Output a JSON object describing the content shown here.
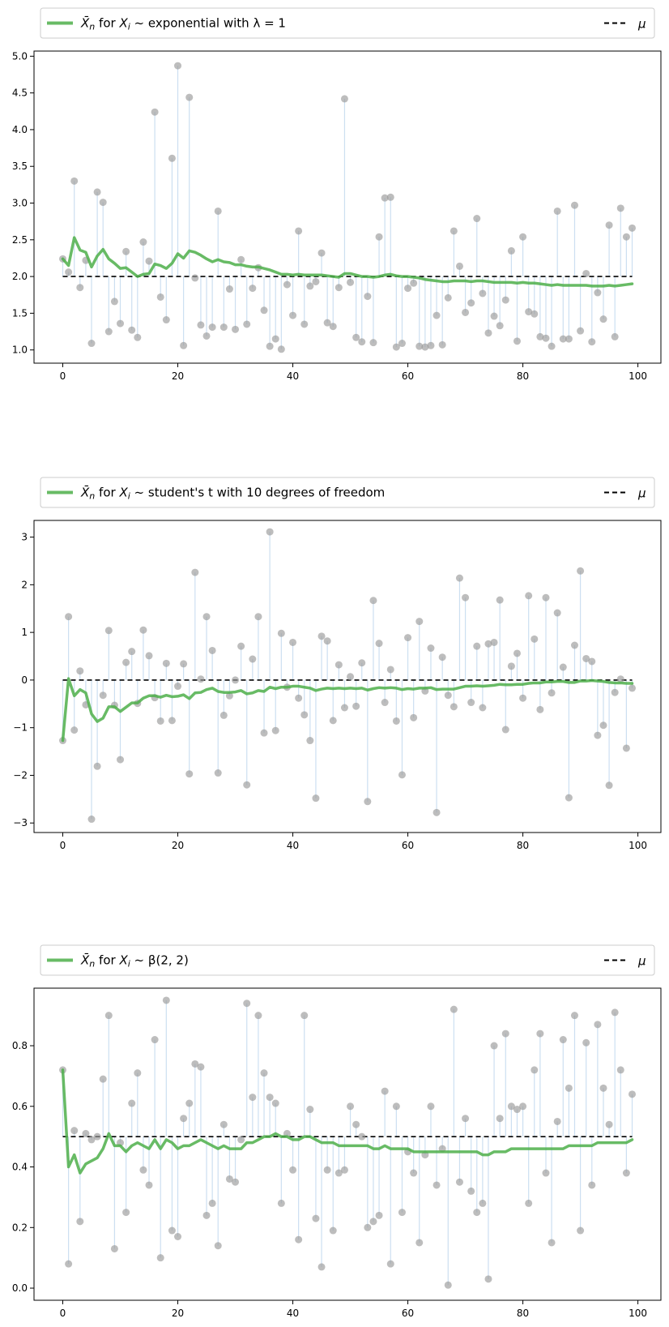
{
  "figure": {
    "legend_mu_label": "μ"
  },
  "chart_data": [
    {
      "type": "line",
      "title": "",
      "xlabel": "",
      "ylabel": "",
      "distribution_label": "exponential with λ = 1",
      "legend": {
        "placement": "above-plot",
        "entries": [
          "X̄n for Xi ~ exponential with λ = 1",
          "μ"
        ]
      },
      "grid": false,
      "xlim": [
        -5,
        104
      ],
      "ylim": [
        0.82,
        5.07
      ],
      "xticks": [
        0,
        20,
        40,
        60,
        80,
        100
      ],
      "xtick_labels": [
        "0",
        "20",
        "40",
        "60",
        "80",
        "100"
      ],
      "yticks": [
        1.0,
        1.5,
        2.0,
        2.5,
        3.0,
        3.5,
        4.0,
        4.5,
        5.0
      ],
      "ytick_labels": [
        "1.0",
        "1.5",
        "2.0",
        "2.5",
        "3.0",
        "3.5",
        "4.0",
        "4.5",
        "5.0"
      ],
      "mu": 2.0,
      "x": [
        0,
        1,
        2,
        3,
        4,
        5,
        6,
        7,
        8,
        9,
        10,
        11,
        12,
        13,
        14,
        15,
        16,
        17,
        18,
        19,
        20,
        21,
        22,
        23,
        24,
        25,
        26,
        27,
        28,
        29,
        30,
        31,
        32,
        33,
        34,
        35,
        36,
        37,
        38,
        39,
        40,
        41,
        42,
        43,
        44,
        45,
        46,
        47,
        48,
        49,
        50,
        51,
        52,
        53,
        54,
        55,
        56,
        57,
        58,
        59,
        60,
        61,
        62,
        63,
        64,
        65,
        66,
        67,
        68,
        69,
        70,
        71,
        72,
        73,
        74,
        75,
        76,
        77,
        78,
        79,
        80,
        81,
        82,
        83,
        84,
        85,
        86,
        87,
        88,
        89,
        90,
        91,
        92,
        93,
        94,
        95,
        96,
        97,
        98,
        99
      ],
      "samples": [
        2.24,
        2.06,
        3.3,
        1.85,
        2.22,
        1.09,
        3.15,
        3.01,
        1.25,
        1.66,
        1.36,
        2.34,
        1.27,
        1.17,
        2.47,
        2.21,
        4.24,
        1.72,
        1.41,
        3.61,
        4.87,
        1.06,
        4.44,
        1.98,
        1.34,
        1.19,
        1.31,
        2.89,
        1.31,
        1.83,
        1.28,
        2.23,
        1.35,
        1.84,
        2.12,
        1.54,
        1.05,
        1.15,
        1.01,
        1.89,
        1.47,
        2.62,
        1.35,
        1.87,
        1.93,
        2.32,
        1.37,
        1.32,
        1.85,
        4.42,
        1.92,
        1.17,
        1.11,
        1.73,
        1.1,
        2.54,
        3.07,
        3.08,
        1.04,
        1.09,
        1.84,
        1.91,
        1.05,
        1.04,
        1.06,
        1.47,
        1.07,
        1.71,
        2.62,
        2.14,
        1.51,
        1.64,
        2.79,
        1.77,
        1.23,
        1.46,
        1.33,
        1.68,
        2.35,
        1.12,
        2.54,
        1.52,
        1.49,
        1.18,
        1.16,
        1.05,
        2.89,
        1.15,
        1.15,
        2.97,
        1.26,
        2.04,
        1.11,
        1.78,
        1.42,
        2.7,
        1.18,
        2.93,
        2.54,
        2.66
      ],
      "running_mean": [
        2.24,
        2.15,
        2.53,
        2.36,
        2.33,
        2.13,
        2.28,
        2.37,
        2.24,
        2.18,
        2.11,
        2.12,
        2.06,
        2.0,
        2.03,
        2.04,
        2.17,
        2.15,
        2.11,
        2.18,
        2.31,
        2.25,
        2.35,
        2.33,
        2.29,
        2.24,
        2.2,
        2.23,
        2.2,
        2.19,
        2.16,
        2.16,
        2.14,
        2.13,
        2.13,
        2.11,
        2.09,
        2.06,
        2.03,
        2.03,
        2.02,
        2.03,
        2.02,
        2.02,
        2.02,
        2.02,
        2.01,
        2.0,
        1.99,
        2.04,
        2.04,
        2.02,
        2.0,
        2.0,
        1.99,
        2.0,
        2.02,
        2.03,
        2.01,
        2.0,
        2.0,
        1.99,
        1.98,
        1.96,
        1.95,
        1.94,
        1.93,
        1.93,
        1.94,
        1.94,
        1.94,
        1.93,
        1.94,
        1.94,
        1.93,
        1.92,
        1.92,
        1.92,
        1.92,
        1.91,
        1.92,
        1.91,
        1.91,
        1.9,
        1.89,
        1.88,
        1.89,
        1.88,
        1.88,
        1.88,
        1.88,
        1.88,
        1.87,
        1.87,
        1.87,
        1.88,
        1.87,
        1.88,
        1.89,
        1.9
      ],
      "colors": {
        "samples": "#999999",
        "stems": "#c6dbef",
        "running_mean": "#4daf4a",
        "mu": "#000000"
      }
    },
    {
      "type": "line",
      "title": "",
      "xlabel": "",
      "ylabel": "",
      "distribution_label": "student's t with 10 degrees of freedom",
      "legend": {
        "placement": "above-plot",
        "entries": [
          "X̄n for Xi ~ student's t with 10 degrees of freedom",
          "μ"
        ]
      },
      "grid": false,
      "xlim": [
        -5,
        104
      ],
      "ylim": [
        -3.2,
        3.35
      ],
      "xticks": [
        0,
        20,
        40,
        60,
        80,
        100
      ],
      "xtick_labels": [
        "0",
        "20",
        "40",
        "60",
        "80",
        "100"
      ],
      "yticks": [
        -3,
        -2,
        -1,
        0,
        1,
        2,
        3
      ],
      "ytick_labels": [
        "−3",
        "−2",
        "−1",
        "0",
        "1",
        "2",
        "3"
      ],
      "mu": 0.0,
      "x": [
        0,
        1,
        2,
        3,
        4,
        5,
        6,
        7,
        8,
        9,
        10,
        11,
        12,
        13,
        14,
        15,
        16,
        17,
        18,
        19,
        20,
        21,
        22,
        23,
        24,
        25,
        26,
        27,
        28,
        29,
        30,
        31,
        32,
        33,
        34,
        35,
        36,
        37,
        38,
        39,
        40,
        41,
        42,
        43,
        44,
        45,
        46,
        47,
        48,
        49,
        50,
        51,
        52,
        53,
        54,
        55,
        56,
        57,
        58,
        59,
        60,
        61,
        62,
        63,
        64,
        65,
        66,
        67,
        68,
        69,
        70,
        71,
        72,
        73,
        74,
        75,
        76,
        77,
        78,
        79,
        80,
        81,
        82,
        83,
        84,
        85,
        86,
        87,
        88,
        89,
        90,
        91,
        92,
        93,
        94,
        95,
        96,
        97,
        98,
        99
      ],
      "samples": [
        -1.27,
        1.33,
        -1.05,
        0.19,
        -0.52,
        -2.92,
        -1.81,
        -0.32,
        1.04,
        -0.53,
        -1.67,
        0.37,
        0.6,
        -0.49,
        1.05,
        0.51,
        -0.37,
        -0.86,
        0.35,
        -0.85,
        -0.13,
        0.34,
        -1.97,
        2.26,
        0.02,
        1.33,
        0.62,
        -1.95,
        -0.74,
        -0.33,
        0.0,
        0.71,
        -2.2,
        0.44,
        1.33,
        -1.11,
        3.11,
        -1.06,
        0.98,
        -0.15,
        0.79,
        -0.38,
        -0.73,
        -1.27,
        -2.48,
        0.92,
        0.82,
        -0.85,
        0.32,
        -0.58,
        0.07,
        -0.55,
        0.36,
        -2.55,
        1.67,
        0.77,
        -0.47,
        0.22,
        -0.86,
        -1.99,
        0.89,
        -0.79,
        1.23,
        -0.23,
        0.67,
        -2.78,
        0.48,
        -0.32,
        -0.56,
        2.14,
        1.73,
        -0.47,
        0.71,
        -0.58,
        0.76,
        0.79,
        1.68,
        -1.04,
        0.29,
        0.56,
        -0.38,
        1.77,
        0.86,
        -0.62,
        1.73,
        -0.27,
        1.41,
        0.27,
        -2.47,
        0.73,
        2.29,
        0.45,
        0.39,
        -1.16,
        -0.95,
        -2.21,
        -0.26,
        0.02,
        -1.43,
        -0.17
      ],
      "running_mean": [
        -1.27,
        0.03,
        -0.33,
        -0.2,
        -0.27,
        -0.71,
        -0.87,
        -0.8,
        -0.56,
        -0.56,
        -0.66,
        -0.57,
        -0.48,
        -0.48,
        -0.38,
        -0.33,
        -0.33,
        -0.36,
        -0.32,
        -0.35,
        -0.34,
        -0.31,
        -0.39,
        -0.27,
        -0.26,
        -0.2,
        -0.17,
        -0.24,
        -0.26,
        -0.26,
        -0.25,
        -0.22,
        -0.29,
        -0.27,
        -0.22,
        -0.24,
        -0.15,
        -0.18,
        -0.15,
        -0.15,
        -0.13,
        -0.13,
        -0.15,
        -0.17,
        -0.22,
        -0.19,
        -0.17,
        -0.18,
        -0.17,
        -0.18,
        -0.17,
        -0.18,
        -0.17,
        -0.21,
        -0.18,
        -0.16,
        -0.17,
        -0.16,
        -0.17,
        -0.2,
        -0.18,
        -0.19,
        -0.17,
        -0.17,
        -0.16,
        -0.2,
        -0.19,
        -0.19,
        -0.19,
        -0.16,
        -0.13,
        -0.13,
        -0.12,
        -0.13,
        -0.12,
        -0.11,
        -0.09,
        -0.1,
        -0.1,
        -0.09,
        -0.09,
        -0.07,
        -0.06,
        -0.06,
        -0.04,
        -0.04,
        -0.03,
        -0.03,
        -0.05,
        -0.05,
        -0.02,
        -0.02,
        -0.01,
        -0.02,
        -0.03,
        -0.05,
        -0.06,
        -0.06,
        -0.07,
        -0.07
      ],
      "colors": {
        "samples": "#999999",
        "stems": "#c6dbef",
        "running_mean": "#4daf4a",
        "mu": "#000000"
      }
    },
    {
      "type": "line",
      "title": "",
      "xlabel": "",
      "ylabel": "",
      "distribution_label": "β(2, 2)",
      "legend": {
        "placement": "above-plot",
        "entries": [
          "X̄n for Xi ~ β(2, 2)",
          "μ"
        ]
      },
      "grid": false,
      "xlim": [
        -5,
        104
      ],
      "ylim": [
        -0.04,
        0.99
      ],
      "xticks": [
        0,
        20,
        40,
        60,
        80,
        100
      ],
      "xtick_labels": [
        "0",
        "20",
        "40",
        "60",
        "80",
        "100"
      ],
      "yticks": [
        0.0,
        0.2,
        0.4,
        0.6,
        0.8
      ],
      "ytick_labels": [
        "0.0",
        "0.2",
        "0.4",
        "0.6",
        "0.8"
      ],
      "mu": 0.5,
      "x": [
        0,
        1,
        2,
        3,
        4,
        5,
        6,
        7,
        8,
        9,
        10,
        11,
        12,
        13,
        14,
        15,
        16,
        17,
        18,
        19,
        20,
        21,
        22,
        23,
        24,
        25,
        26,
        27,
        28,
        29,
        30,
        31,
        32,
        33,
        34,
        35,
        36,
        37,
        38,
        39,
        40,
        41,
        42,
        43,
        44,
        45,
        46,
        47,
        48,
        49,
        50,
        51,
        52,
        53,
        54,
        55,
        56,
        57,
        58,
        59,
        60,
        61,
        62,
        63,
        64,
        65,
        66,
        67,
        68,
        69,
        70,
        71,
        72,
        73,
        74,
        75,
        76,
        77,
        78,
        79,
        80,
        81,
        82,
        83,
        84,
        85,
        86,
        87,
        88,
        89,
        90,
        91,
        92,
        93,
        94,
        95,
        96,
        97,
        98,
        99
      ],
      "samples": [
        0.72,
        0.08,
        0.52,
        0.22,
        0.51,
        0.49,
        0.5,
        0.69,
        0.9,
        0.13,
        0.48,
        0.25,
        0.61,
        0.71,
        0.39,
        0.34,
        0.82,
        0.1,
        0.95,
        0.19,
        0.17,
        0.56,
        0.61,
        0.74,
        0.73,
        0.24,
        0.28,
        0.14,
        0.54,
        0.36,
        0.35,
        0.49,
        0.94,
        0.63,
        0.9,
        0.71,
        0.63,
        0.61,
        0.28,
        0.51,
        0.39,
        0.16,
        0.9,
        0.59,
        0.23,
        0.07,
        0.39,
        0.19,
        0.38,
        0.39,
        0.6,
        0.54,
        0.5,
        0.2,
        0.22,
        0.24,
        0.65,
        0.08,
        0.6,
        0.25,
        0.45,
        0.38,
        0.15,
        0.44,
        0.6,
        0.34,
        0.46,
        0.01,
        0.92,
        0.35,
        0.56,
        0.32,
        0.25,
        0.28,
        0.03,
        0.8,
        0.56,
        0.84,
        0.6,
        0.59,
        0.6,
        0.28,
        0.72,
        0.84,
        0.38,
        0.15,
        0.55,
        0.82,
        0.66,
        0.9,
        0.19,
        0.81,
        0.34,
        0.87,
        0.66,
        0.54,
        0.91,
        0.72,
        0.38,
        0.64
      ],
      "running_mean": [
        0.72,
        0.4,
        0.44,
        0.38,
        0.41,
        0.42,
        0.43,
        0.46,
        0.51,
        0.47,
        0.47,
        0.45,
        0.47,
        0.48,
        0.47,
        0.46,
        0.49,
        0.46,
        0.49,
        0.48,
        0.46,
        0.47,
        0.47,
        0.48,
        0.49,
        0.48,
        0.47,
        0.46,
        0.47,
        0.46,
        0.46,
        0.46,
        0.48,
        0.48,
        0.49,
        0.5,
        0.5,
        0.51,
        0.5,
        0.5,
        0.49,
        0.49,
        0.5,
        0.5,
        0.49,
        0.48,
        0.48,
        0.48,
        0.47,
        0.47,
        0.47,
        0.47,
        0.47,
        0.47,
        0.46,
        0.46,
        0.47,
        0.46,
        0.46,
        0.46,
        0.46,
        0.45,
        0.45,
        0.45,
        0.45,
        0.45,
        0.45,
        0.45,
        0.45,
        0.45,
        0.45,
        0.45,
        0.45,
        0.44,
        0.44,
        0.45,
        0.45,
        0.45,
        0.46,
        0.46,
        0.46,
        0.46,
        0.46,
        0.46,
        0.46,
        0.46,
        0.46,
        0.46,
        0.47,
        0.47,
        0.47,
        0.47,
        0.47,
        0.48,
        0.48,
        0.48,
        0.48,
        0.48,
        0.48,
        0.49
      ],
      "colors": {
        "samples": "#999999",
        "stems": "#c6dbef",
        "running_mean": "#4daf4a",
        "mu": "#000000"
      }
    }
  ]
}
